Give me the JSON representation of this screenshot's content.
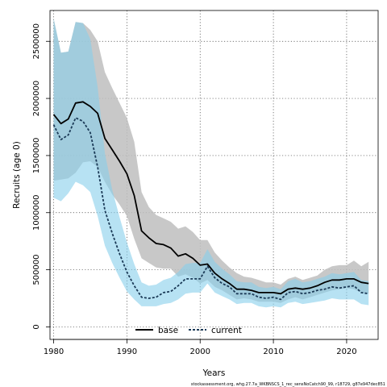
{
  "chart_data": {
    "type": "line",
    "xlabel": "Years",
    "ylabel": "Recruits (age 0)",
    "xlim": [
      1979.5,
      2024.3
    ],
    "ylim": [
      -110000,
      2770000
    ],
    "xticks": [
      1980,
      1990,
      2000,
      2010,
      2020
    ],
    "yticks": [
      0,
      500000,
      1000000,
      1500000,
      2000000,
      2500000
    ],
    "grid": true,
    "legend_position": "bottom-center",
    "footnote": "stockassessment.org, whg.27.7a_WKBNSCS_1_rec_sensNoCatch90_99, r18729, g87e947dec851",
    "series": [
      {
        "name": "base",
        "color": "#000000",
        "band_color": "#bebebe",
        "linestyle": "solid",
        "x": [
          1980,
          1981,
          1982,
          1983,
          1984,
          1985,
          1986,
          1987,
          1988,
          1989,
          1990,
          1991,
          1992,
          1993,
          1994,
          1995,
          1996,
          1997,
          1998,
          1999,
          2000,
          2001,
          2002,
          2003,
          2004,
          2005,
          2006,
          2007,
          2008,
          2009,
          2010,
          2011,
          2012,
          2013,
          2014,
          2015,
          2016,
          2017,
          2018,
          2019,
          2020,
          2021,
          2022,
          2023
        ],
        "y": [
          1860000,
          1780000,
          1820000,
          1960000,
          1970000,
          1930000,
          1870000,
          1650000,
          1550000,
          1450000,
          1340000,
          1150000,
          840000,
          780000,
          730000,
          720000,
          690000,
          620000,
          640000,
          600000,
          540000,
          550000,
          470000,
          420000,
          380000,
          330000,
          330000,
          320000,
          300000,
          300000,
          300000,
          290000,
          330000,
          340000,
          330000,
          340000,
          360000,
          390000,
          410000,
          410000,
          420000,
          420000,
          390000,
          380000
        ],
        "lower": [
          1280000,
          1290000,
          1300000,
          1350000,
          1440000,
          1450000,
          1400000,
          1270000,
          1160000,
          1070000,
          970000,
          770000,
          600000,
          560000,
          520000,
          510000,
          510000,
          440000,
          460000,
          430000,
          380000,
          410000,
          350000,
          320000,
          280000,
          240000,
          250000,
          240000,
          220000,
          220000,
          220000,
          210000,
          240000,
          260000,
          240000,
          260000,
          280000,
          300000,
          320000,
          330000,
          340000,
          330000,
          300000,
          290000
        ],
        "upper": [
          2700000,
          2400000,
          2410000,
          2670000,
          2660000,
          2600000,
          2500000,
          2230000,
          2090000,
          1960000,
          1830000,
          1620000,
          1180000,
          1050000,
          980000,
          950000,
          920000,
          860000,
          880000,
          830000,
          760000,
          760000,
          650000,
          580000,
          520000,
          470000,
          440000,
          430000,
          410000,
          390000,
          390000,
          370000,
          420000,
          440000,
          410000,
          430000,
          450000,
          500000,
          530000,
          540000,
          540000,
          580000,
          530000,
          570000
        ]
      },
      {
        "name": "current",
        "color": "#1b3a57",
        "band_color": "#87ceeb",
        "linestyle": "dashed",
        "x": [
          1980,
          1981,
          1982,
          1983,
          1984,
          1985,
          1986,
          1987,
          1988,
          1989,
          1990,
          1991,
          1992,
          1993,
          1994,
          1995,
          1996,
          1997,
          1998,
          1999,
          2000,
          2001,
          2002,
          2003,
          2004,
          2005,
          2006,
          2007,
          2008,
          2009,
          2010,
          2011,
          2012,
          2013,
          2014,
          2015,
          2016,
          2017,
          2018,
          2019,
          2020,
          2021,
          2022,
          2023
        ],
        "y": [
          1770000,
          1640000,
          1680000,
          1830000,
          1800000,
          1700000,
          1400000,
          1020000,
          820000,
          640000,
          480000,
          360000,
          260000,
          250000,
          260000,
          300000,
          310000,
          360000,
          420000,
          420000,
          420000,
          530000,
          430000,
          380000,
          350000,
          290000,
          290000,
          290000,
          260000,
          250000,
          260000,
          240000,
          300000,
          310000,
          290000,
          300000,
          320000,
          330000,
          350000,
          340000,
          350000,
          360000,
          300000,
          290000
        ],
        "lower": [
          1130000,
          1100000,
          1170000,
          1270000,
          1240000,
          1180000,
          970000,
          710000,
          560000,
          430000,
          310000,
          240000,
          180000,
          180000,
          180000,
          200000,
          210000,
          240000,
          290000,
          300000,
          300000,
          380000,
          300000,
          270000,
          240000,
          200000,
          210000,
          210000,
          180000,
          170000,
          180000,
          170000,
          210000,
          220000,
          200000,
          210000,
          220000,
          230000,
          250000,
          240000,
          240000,
          240000,
          200000,
          190000
        ],
        "upper": [
          2700000,
          2400000,
          2410000,
          2670000,
          2660000,
          2520000,
          2100000,
          1520000,
          1200000,
          960000,
          740000,
          550000,
          390000,
          360000,
          370000,
          410000,
          430000,
          480000,
          550000,
          560000,
          560000,
          680000,
          570000,
          510000,
          460000,
          400000,
          390000,
          390000,
          350000,
          340000,
          350000,
          330000,
          400000,
          420000,
          390000,
          400000,
          420000,
          440000,
          470000,
          460000,
          470000,
          480000,
          410000,
          400000
        ]
      }
    ]
  }
}
